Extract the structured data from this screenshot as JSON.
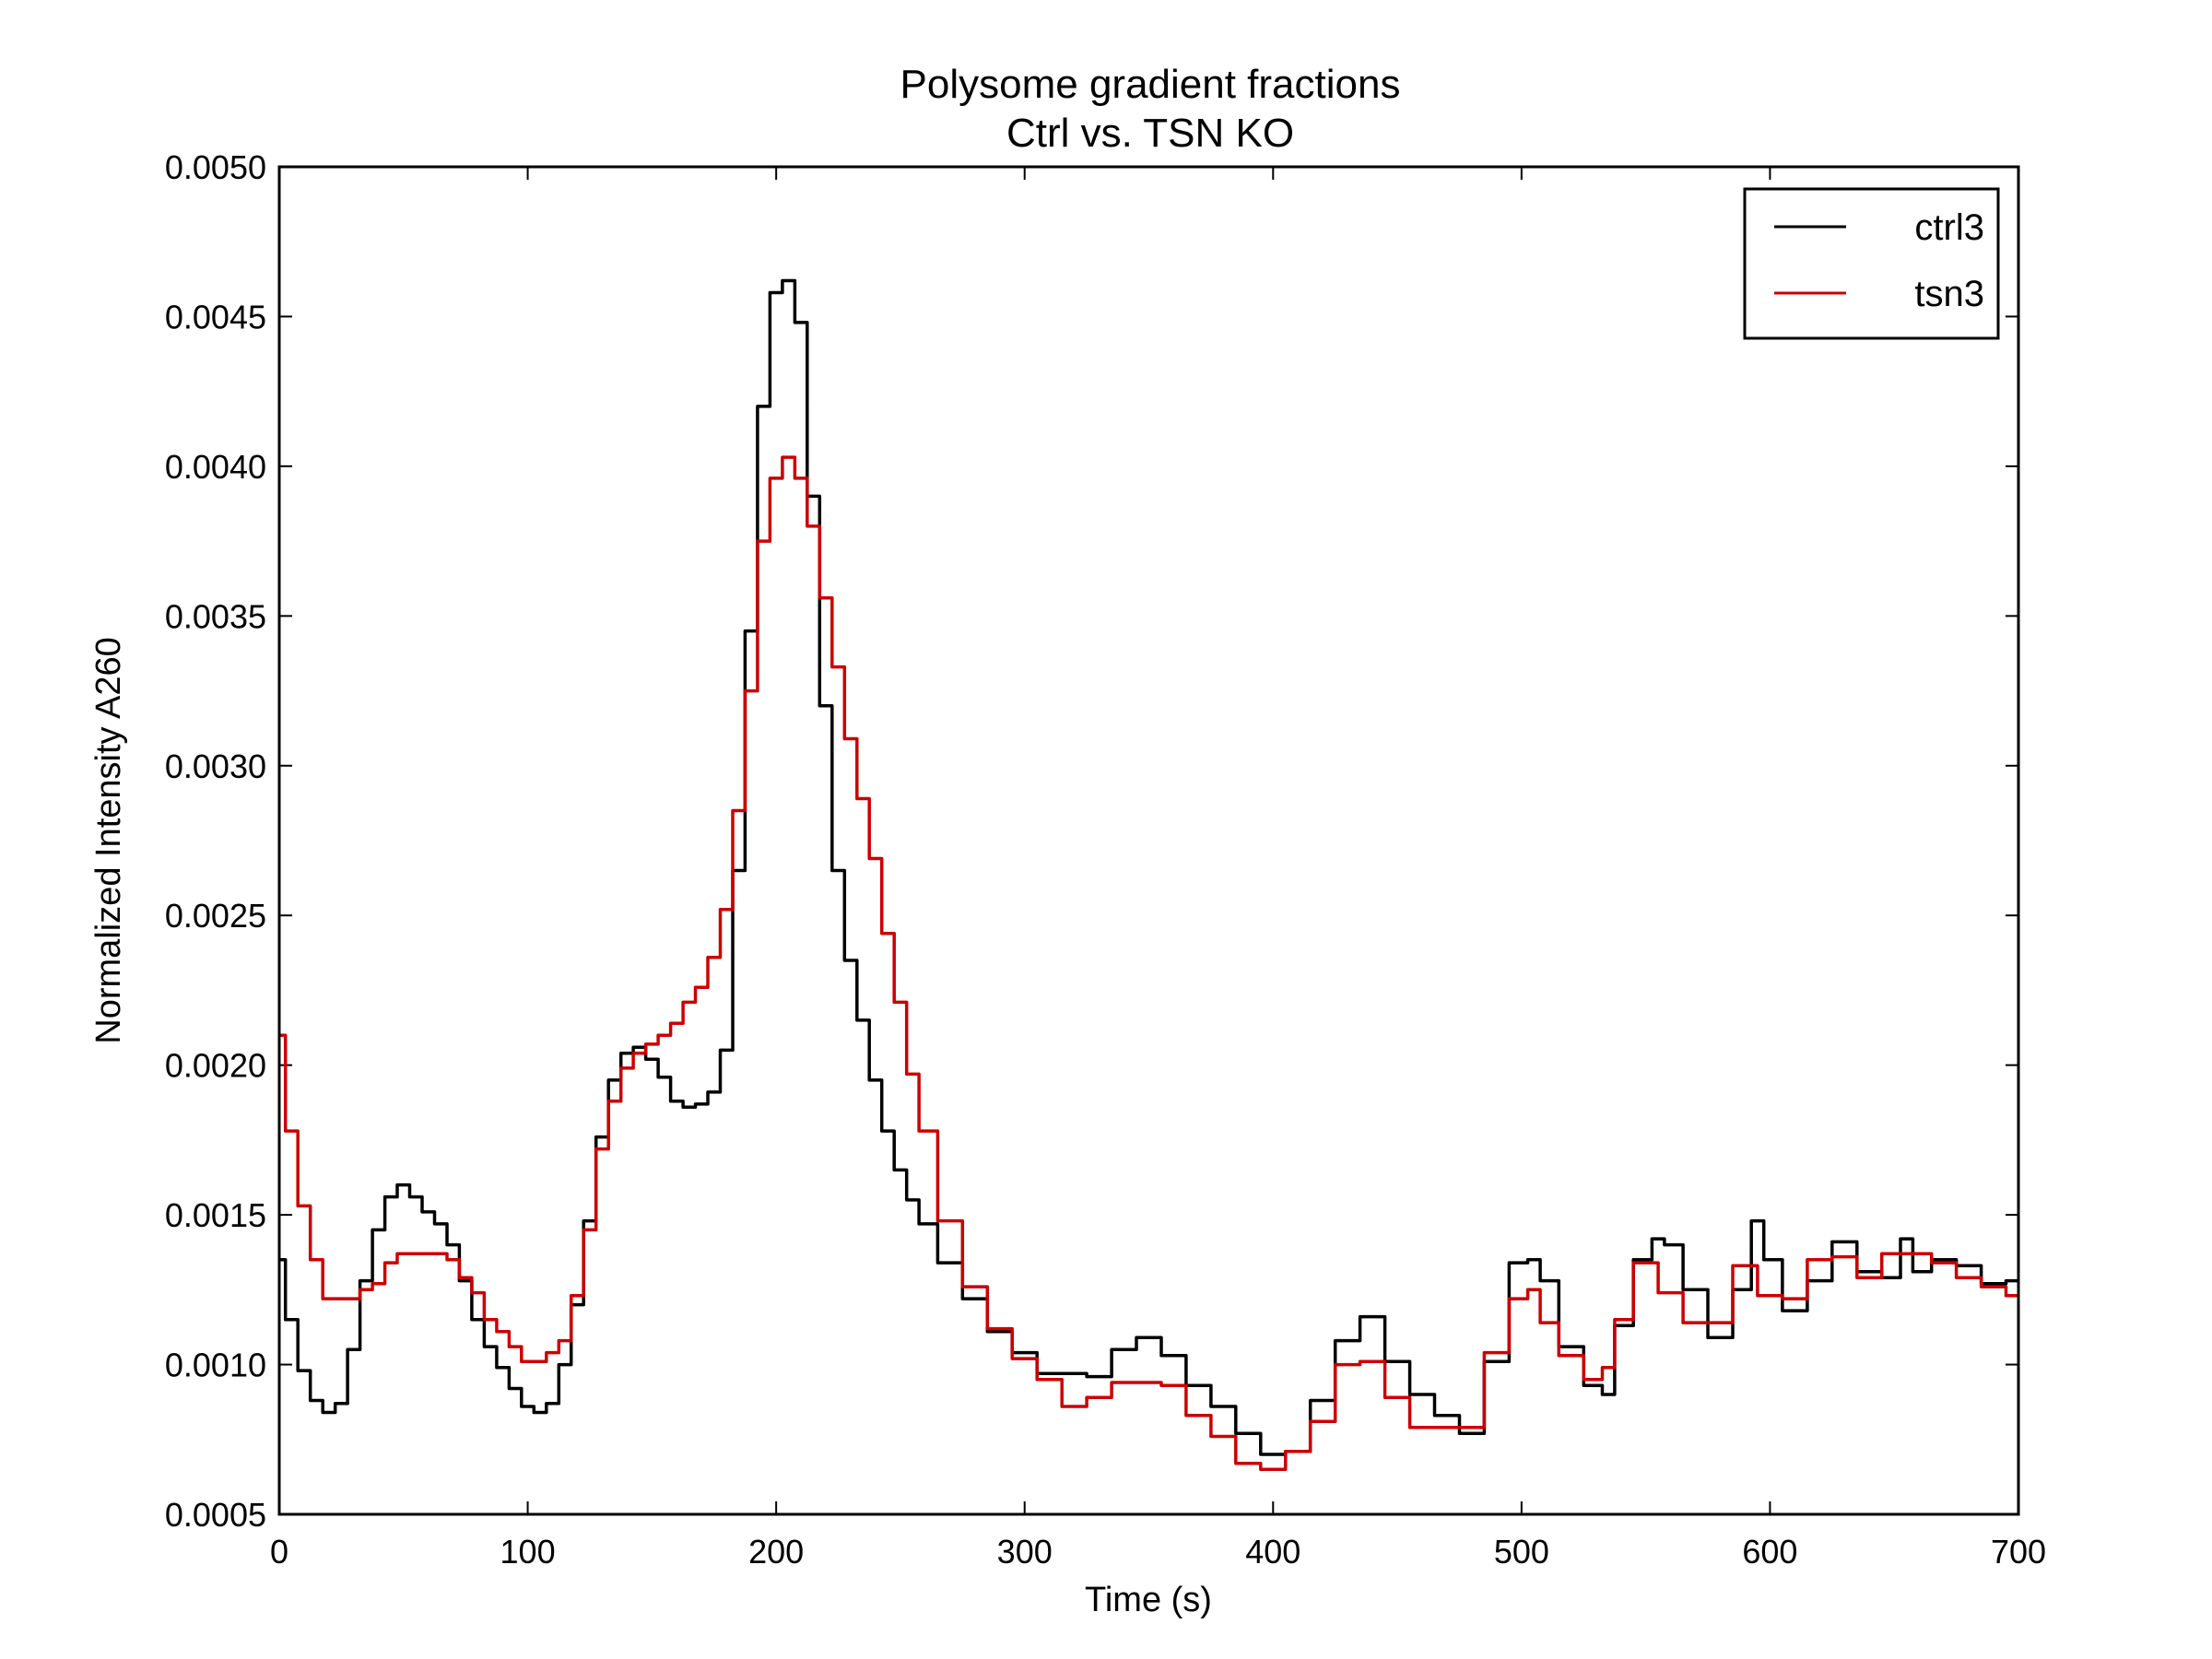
{
  "chart_data": {
    "type": "line",
    "title": "Polysome gradient fractions",
    "subtitle": "Ctrl vs. TSN KO",
    "xlabel": "Time (s)",
    "ylabel": "Normalized Intensity A260",
    "xlim": [
      0,
      700
    ],
    "ylim": [
      0.0005,
      0.005
    ],
    "xticks": [
      "0",
      "100",
      "200",
      "300",
      "400",
      "500",
      "600",
      "700"
    ],
    "yticks": [
      "0.0005",
      "0.0010",
      "0.0015",
      "0.0020",
      "0.0025",
      "0.0030",
      "0.0035",
      "0.0040",
      "0.0045",
      "0.0050"
    ],
    "grid": false,
    "legend_position": "top-right",
    "series": [
      {
        "name": "ctrl3",
        "color": "#000000",
        "x": [
          0,
          5,
          10,
          15,
          20,
          25,
          30,
          35,
          40,
          45,
          50,
          55,
          60,
          65,
          70,
          75,
          80,
          85,
          90,
          95,
          100,
          105,
          110,
          115,
          120,
          125,
          130,
          135,
          140,
          145,
          150,
          155,
          160,
          165,
          170,
          175,
          180,
          185,
          190,
          195,
          200,
          205,
          210,
          215,
          220,
          225,
          230,
          235,
          240,
          245,
          250,
          255,
          260,
          270,
          280,
          290,
          300,
          310,
          320,
          330,
          340,
          350,
          360,
          370,
          380,
          390,
          400,
          410,
          420,
          430,
          440,
          450,
          460,
          470,
          480,
          490,
          500,
          505,
          510,
          520,
          530,
          535,
          540,
          550,
          555,
          560,
          570,
          580,
          590,
          595,
          600,
          610,
          620,
          630,
          640,
          650,
          655,
          660,
          670,
          680,
          690,
          700
        ],
        "y": [
          0.00135,
          0.00115,
          0.00098,
          0.00088,
          0.00084,
          0.00087,
          0.00105,
          0.00128,
          0.00145,
          0.00156,
          0.0016,
          0.00156,
          0.00151,
          0.00147,
          0.0014,
          0.00128,
          0.00115,
          0.00106,
          0.00099,
          0.00092,
          0.00086,
          0.00084,
          0.00087,
          0.001,
          0.0012,
          0.00148,
          0.00176,
          0.00195,
          0.00204,
          0.00206,
          0.00202,
          0.00196,
          0.00188,
          0.00186,
          0.00187,
          0.00191,
          0.00205,
          0.00265,
          0.00345,
          0.0042,
          0.00458,
          0.00462,
          0.00448,
          0.0039,
          0.0032,
          0.00265,
          0.00235,
          0.00215,
          0.00195,
          0.00178,
          0.00165,
          0.00155,
          0.00147,
          0.00134,
          0.00122,
          0.00111,
          0.00104,
          0.00097,
          0.00097,
          0.00096,
          0.00105,
          0.00109,
          0.00103,
          0.00093,
          0.00086,
          0.00077,
          0.0007,
          0.00071,
          0.00088,
          0.00108,
          0.00116,
          0.00101,
          0.0009,
          0.00083,
          0.00077,
          0.00101,
          0.00134,
          0.00135,
          0.00128,
          0.00106,
          0.00093,
          0.0009,
          0.00113,
          0.00135,
          0.00142,
          0.0014,
          0.00125,
          0.00109,
          0.00125,
          0.00148,
          0.00135,
          0.00118,
          0.00128,
          0.00141,
          0.00131,
          0.00129,
          0.00142,
          0.00131,
          0.00135,
          0.00133,
          0.00127,
          0.00128
        ]
      },
      {
        "name": "tsn3",
        "color": "#cc0000",
        "x": [
          0,
          5,
          10,
          15,
          20,
          25,
          30,
          35,
          40,
          45,
          50,
          55,
          60,
          65,
          70,
          75,
          80,
          85,
          90,
          95,
          100,
          105,
          110,
          115,
          120,
          125,
          130,
          135,
          140,
          145,
          150,
          155,
          160,
          165,
          170,
          175,
          180,
          185,
          190,
          195,
          200,
          205,
          210,
          215,
          220,
          225,
          230,
          235,
          240,
          245,
          250,
          255,
          260,
          270,
          280,
          290,
          300,
          310,
          320,
          330,
          340,
          350,
          360,
          370,
          380,
          390,
          400,
          410,
          420,
          430,
          440,
          450,
          460,
          470,
          480,
          490,
          500,
          505,
          510,
          520,
          530,
          535,
          540,
          550,
          560,
          570,
          580,
          590,
          600,
          610,
          620,
          630,
          640,
          650,
          660,
          670,
          680,
          690,
          700
        ],
        "y": [
          0.0021,
          0.00178,
          0.00153,
          0.00135,
          0.00122,
          0.00122,
          0.00122,
          0.00125,
          0.00127,
          0.00134,
          0.00137,
          0.00137,
          0.00137,
          0.00137,
          0.00135,
          0.00129,
          0.00124,
          0.00115,
          0.00111,
          0.00106,
          0.00101,
          0.00101,
          0.00104,
          0.00108,
          0.00123,
          0.00145,
          0.00172,
          0.00188,
          0.00199,
          0.00204,
          0.00207,
          0.0021,
          0.00214,
          0.00221,
          0.00226,
          0.00236,
          0.00252,
          0.00285,
          0.00325,
          0.00375,
          0.00396,
          0.00403,
          0.00396,
          0.0038,
          0.00356,
          0.00333,
          0.00309,
          0.00289,
          0.00269,
          0.00244,
          0.00221,
          0.00197,
          0.00178,
          0.00148,
          0.00126,
          0.00112,
          0.00102,
          0.00095,
          0.00086,
          0.00089,
          0.00094,
          0.00094,
          0.00093,
          0.00083,
          0.00076,
          0.00067,
          0.00065,
          0.00071,
          0.00081,
          0.001,
          0.00101,
          0.00089,
          0.00079,
          0.00079,
          0.00079,
          0.00104,
          0.00122,
          0.00125,
          0.00114,
          0.00103,
          0.00095,
          0.00099,
          0.00115,
          0.00134,
          0.00124,
          0.00114,
          0.00114,
          0.00133,
          0.00123,
          0.00122,
          0.00135,
          0.00136,
          0.00129,
          0.00137,
          0.00137,
          0.00134,
          0.00129,
          0.00126,
          0.00123
        ]
      }
    ]
  }
}
